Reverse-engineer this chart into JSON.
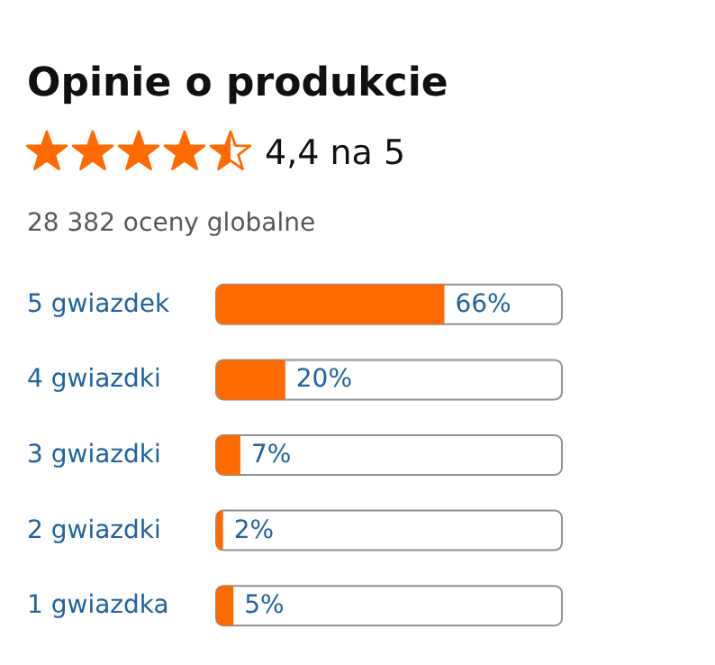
{
  "chart_data": {
    "type": "bar",
    "orientation": "horizontal",
    "title": "Opinie o produkcie",
    "annotations": [
      "4,4 na 5",
      "28 382 oceny globalne"
    ],
    "categories": [
      "5 gwiazdek",
      "4 gwiazdki",
      "3 gwiazdki",
      "2 gwiazdki",
      "1 gwiazdka"
    ],
    "values": [
      66,
      20,
      7,
      2,
      5
    ],
    "value_labels": [
      "66%",
      "20%",
      "7%",
      "2%",
      "5%"
    ],
    "color": "#ff6a00",
    "xlim": [
      0,
      100
    ],
    "tick_labels": "y"
  }
}
